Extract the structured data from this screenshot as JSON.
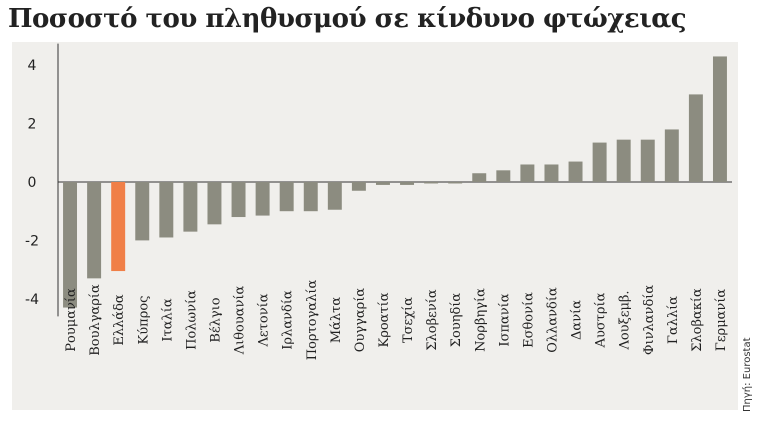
{
  "title": "Ποσοστό του πληθυσμού σε κίνδυνο φτώχειας",
  "source": "Πηγή: Eurostat",
  "colors": {
    "bar": "#8c8c80",
    "highlight": "#f07f47",
    "panel": "#f0efec"
  },
  "chart_data": {
    "type": "bar",
    "title": "Ποσοστό του πληθυσμού σε κίνδυνο φτώχειας",
    "xlabel": "",
    "ylabel": "",
    "ylim": [
      -4.6,
      4.6
    ],
    "yticks": [
      4,
      2,
      0,
      -2,
      -4
    ],
    "grid": false,
    "highlight_category": "Ελλάδα",
    "categories": [
      "Ρουμανία",
      "Βουλγαρία",
      "Ελλάδα",
      "Κύπρος",
      "Ιταλία",
      "Πολωνία",
      "Βέλγιο",
      "Λιθουανία",
      "Λετονία",
      "Ιρλανδία",
      "Πορτογαλία",
      "Μάλτα",
      "Ουγγαρία",
      "Κροατία",
      "Τσεχία",
      "Σλοβενία",
      "Σουηδία",
      "Νορβηγία",
      "Ισπανία",
      "Εσθονία",
      "Ολλανδία",
      "Δανία",
      "Αυστρία",
      "Λουξεμβ.",
      "Φινλανδία",
      "Γαλλία",
      "Σλοβακία",
      "Γερμανία"
    ],
    "values": [
      -4.3,
      -3.3,
      -3.05,
      -2.0,
      -1.9,
      -1.7,
      -1.45,
      -1.2,
      -1.15,
      -1.0,
      -1.0,
      -0.95,
      -0.3,
      -0.1,
      -0.1,
      -0.05,
      -0.05,
      0.3,
      0.4,
      0.6,
      0.6,
      0.7,
      1.35,
      1.45,
      1.45,
      1.8,
      3.0,
      4.3
    ]
  }
}
